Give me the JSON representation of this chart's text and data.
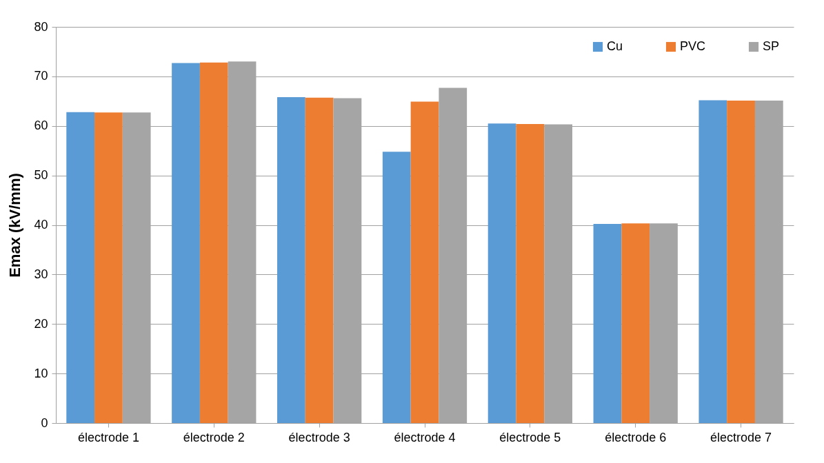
{
  "chart_data": {
    "type": "bar",
    "ylabel": "Emax (kV/mm)",
    "categories": [
      "électrode 1",
      "électrode 2",
      "électrode 3",
      "électrode 4",
      "électrode 5",
      "électrode 6",
      "électrode 7"
    ],
    "series": [
      {
        "name": "Cu",
        "color": "#5b9bd5",
        "values": [
          62.8,
          72.7,
          65.8,
          54.8,
          60.5,
          40.2,
          65.2
        ]
      },
      {
        "name": "PVC",
        "color": "#ed7d31",
        "values": [
          62.7,
          72.8,
          65.7,
          64.9,
          60.4,
          40.3,
          65.1
        ]
      },
      {
        "name": "SP",
        "color": "#a5a5a5",
        "values": [
          62.7,
          73.0,
          65.6,
          67.7,
          60.3,
          40.3,
          65.1
        ]
      }
    ],
    "ylim": [
      0,
      80
    ],
    "yticks": [
      0,
      10,
      20,
      30,
      40,
      50,
      60,
      70,
      80
    ],
    "grid": "y",
    "legend": "top right"
  }
}
